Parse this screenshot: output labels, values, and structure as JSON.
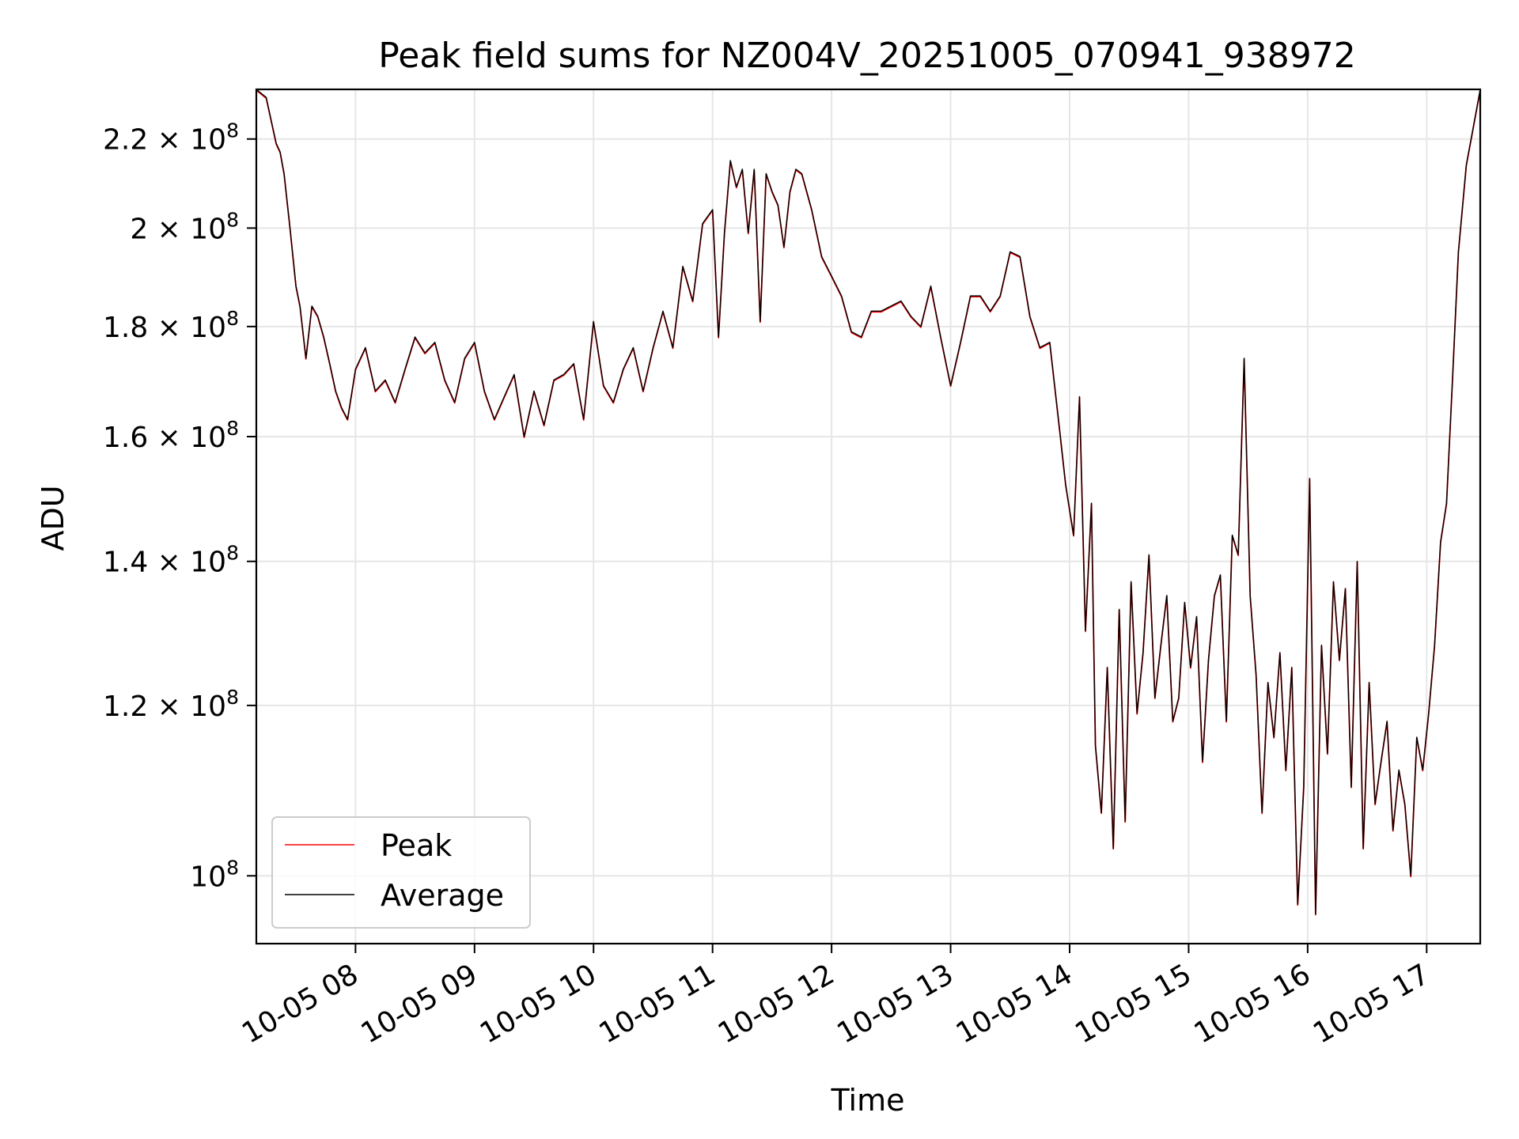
{
  "chart_data": {
    "type": "line",
    "title": "Peak field sums for NZ004V_20251005_070941_938972",
    "xlabel": "Time",
    "ylabel": "ADU",
    "yscale": "log",
    "grid": true,
    "legend_position": "lower-left",
    "xlim": [
      "2025-10-05 07:10",
      "2025-10-05 17:27"
    ],
    "ylim": [
      93000000,
      232000000
    ],
    "xticks": [
      {
        "label": "10-05 08",
        "value": "2025-10-05 08:00"
      },
      {
        "label": "10-05 09",
        "value": "2025-10-05 09:00"
      },
      {
        "label": "10-05 10",
        "value": "2025-10-05 10:00"
      },
      {
        "label": "10-05 11",
        "value": "2025-10-05 11:00"
      },
      {
        "label": "10-05 12",
        "value": "2025-10-05 12:00"
      },
      {
        "label": "10-05 13",
        "value": "2025-10-05 13:00"
      },
      {
        "label": "10-05 14",
        "value": "2025-10-05 14:00"
      },
      {
        "label": "10-05 15",
        "value": "2025-10-05 15:00"
      },
      {
        "label": "10-05 16",
        "value": "2025-10-05 16:00"
      },
      {
        "label": "10-05 17",
        "value": "2025-10-05 17:00"
      }
    ],
    "yticks": [
      {
        "mant": "10",
        "exp": "8",
        "value": 100000000
      },
      {
        "mant": "1.2 × 10",
        "exp": "8",
        "value": 120000000
      },
      {
        "mant": "1.4 × 10",
        "exp": "8",
        "value": 140000000
      },
      {
        "mant": "1.6 × 10",
        "exp": "8",
        "value": 160000000
      },
      {
        "mant": "1.8 × 10",
        "exp": "8",
        "value": 180000000
      },
      {
        "mant": "2 × 10",
        "exp": "8",
        "value": 200000000
      },
      {
        "mant": "2.2 × 10",
        "exp": "8",
        "value": 220000000
      }
    ],
    "series": [
      {
        "name": "Peak",
        "color": "#ff0000",
        "x": [
          "2025-10-05 07:10",
          "2025-10-05 07:15",
          "2025-10-05 07:20",
          "2025-10-05 07:22",
          "2025-10-05 07:24",
          "2025-10-05 07:27",
          "2025-10-05 07:30",
          "2025-10-05 07:32",
          "2025-10-05 07:35",
          "2025-10-05 07:38",
          "2025-10-05 07:41",
          "2025-10-05 07:44",
          "2025-10-05 07:47",
          "2025-10-05 07:50",
          "2025-10-05 07:53",
          "2025-10-05 07:56",
          "2025-10-05 08:00",
          "2025-10-05 08:05",
          "2025-10-05 08:10",
          "2025-10-05 08:15",
          "2025-10-05 08:20",
          "2025-10-05 08:25",
          "2025-10-05 08:30",
          "2025-10-05 08:35",
          "2025-10-05 08:40",
          "2025-10-05 08:45",
          "2025-10-05 08:50",
          "2025-10-05 08:55",
          "2025-10-05 09:00",
          "2025-10-05 09:05",
          "2025-10-05 09:10",
          "2025-10-05 09:15",
          "2025-10-05 09:20",
          "2025-10-05 09:25",
          "2025-10-05 09:30",
          "2025-10-05 09:35",
          "2025-10-05 09:40",
          "2025-10-05 09:45",
          "2025-10-05 09:50",
          "2025-10-05 09:55",
          "2025-10-05 10:00",
          "2025-10-05 10:05",
          "2025-10-05 10:10",
          "2025-10-05 10:15",
          "2025-10-05 10:20",
          "2025-10-05 10:25",
          "2025-10-05 10:30",
          "2025-10-05 10:35",
          "2025-10-05 10:40",
          "2025-10-05 10:45",
          "2025-10-05 10:50",
          "2025-10-05 10:55",
          "2025-10-05 11:00",
          "2025-10-05 11:03",
          "2025-10-05 11:06",
          "2025-10-05 11:09",
          "2025-10-05 11:12",
          "2025-10-05 11:15",
          "2025-10-05 11:18",
          "2025-10-05 11:21",
          "2025-10-05 11:24",
          "2025-10-05 11:27",
          "2025-10-05 11:30",
          "2025-10-05 11:33",
          "2025-10-05 11:36",
          "2025-10-05 11:39",
          "2025-10-05 11:42",
          "2025-10-05 11:45",
          "2025-10-05 11:50",
          "2025-10-05 11:55",
          "2025-10-05 12:00",
          "2025-10-05 12:05",
          "2025-10-05 12:10",
          "2025-10-05 12:15",
          "2025-10-05 12:20",
          "2025-10-05 12:25",
          "2025-10-05 12:30",
          "2025-10-05 12:35",
          "2025-10-05 12:40",
          "2025-10-05 12:45",
          "2025-10-05 12:50",
          "2025-10-05 12:55",
          "2025-10-05 13:00",
          "2025-10-05 13:05",
          "2025-10-05 13:10",
          "2025-10-05 13:15",
          "2025-10-05 13:20",
          "2025-10-05 13:25",
          "2025-10-05 13:30",
          "2025-10-05 13:35",
          "2025-10-05 13:40",
          "2025-10-05 13:45",
          "2025-10-05 13:50",
          "2025-10-05 13:55",
          "2025-10-05 13:58",
          "2025-10-05 14:02",
          "2025-10-05 14:05",
          "2025-10-05 14:08",
          "2025-10-05 14:11",
          "2025-10-05 14:13",
          "2025-10-05 14:16",
          "2025-10-05 14:19",
          "2025-10-05 14:22",
          "2025-10-05 14:25",
          "2025-10-05 14:28",
          "2025-10-05 14:31",
          "2025-10-05 14:34",
          "2025-10-05 14:37",
          "2025-10-05 14:40",
          "2025-10-05 14:43",
          "2025-10-05 14:46",
          "2025-10-05 14:49",
          "2025-10-05 14:52",
          "2025-10-05 14:55",
          "2025-10-05 14:58",
          "2025-10-05 15:01",
          "2025-10-05 15:04",
          "2025-10-05 15:07",
          "2025-10-05 15:10",
          "2025-10-05 15:13",
          "2025-10-05 15:16",
          "2025-10-05 15:19",
          "2025-10-05 15:22",
          "2025-10-05 15:25",
          "2025-10-05 15:28",
          "2025-10-05 15:31",
          "2025-10-05 15:34",
          "2025-10-05 15:37",
          "2025-10-05 15:40",
          "2025-10-05 15:43",
          "2025-10-05 15:46",
          "2025-10-05 15:49",
          "2025-10-05 15:52",
          "2025-10-05 15:55",
          "2025-10-05 15:58",
          "2025-10-05 16:01",
          "2025-10-05 16:04",
          "2025-10-05 16:07",
          "2025-10-05 16:10",
          "2025-10-05 16:13",
          "2025-10-05 16:16",
          "2025-10-05 16:19",
          "2025-10-05 16:22",
          "2025-10-05 16:25",
          "2025-10-05 16:28",
          "2025-10-05 16:31",
          "2025-10-05 16:34",
          "2025-10-05 16:37",
          "2025-10-05 16:40",
          "2025-10-05 16:43",
          "2025-10-05 16:46",
          "2025-10-05 16:49",
          "2025-10-05 16:52",
          "2025-10-05 16:55",
          "2025-10-05 16:58",
          "2025-10-05 17:01",
          "2025-10-05 17:04",
          "2025-10-05 17:07",
          "2025-10-05 17:10",
          "2025-10-05 17:13",
          "2025-10-05 17:16",
          "2025-10-05 17:20",
          "2025-10-05 17:27"
        ],
        "y": [
          232000000,
          230000000,
          219000000,
          217000000,
          212000000,
          200000000,
          188000000,
          184000000,
          174000000,
          184000000,
          182000000,
          178000000,
          173000000,
          168000000,
          165000000,
          163000000,
          172000000,
          176000000,
          168000000,
          170000000,
          166000000,
          172000000,
          178000000,
          175000000,
          177000000,
          170000000,
          166000000,
          174000000,
          177000000,
          168000000,
          163000000,
          167000000,
          171000000,
          160000000,
          168000000,
          162000000,
          170000000,
          171000000,
          173000000,
          163000000,
          181000000,
          169000000,
          166000000,
          172000000,
          176000000,
          168000000,
          176000000,
          183000000,
          176000000,
          192000000,
          185000000,
          201000000,
          204000000,
          178000000,
          199000000,
          215000000,
          209000000,
          213000000,
          199000000,
          213000000,
          181000000,
          212000000,
          208000000,
          205000000,
          196000000,
          208000000,
          213000000,
          212000000,
          204000000,
          194000000,
          190000000,
          186000000,
          179000000,
          178000000,
          183000000,
          183000000,
          184000000,
          185000000,
          182000000,
          180000000,
          188000000,
          178000000,
          169000000,
          177000000,
          186000000,
          186000000,
          183000000,
          186000000,
          195000000,
          194000000,
          182000000,
          176000000,
          177000000,
          161000000,
          152000000,
          144000000,
          167000000,
          130000000,
          149000000,
          115000000,
          107000000,
          125000000,
          103000000,
          133000000,
          106000000,
          137000000,
          119000000,
          127000000,
          141000000,
          121000000,
          128000000,
          135000000,
          118000000,
          121000000,
          134000000,
          125000000,
          132000000,
          113000000,
          126000000,
          135000000,
          138000000,
          118000000,
          144000000,
          141000000,
          174000000,
          135000000,
          124000000,
          107000000,
          123000000,
          116000000,
          127000000,
          112000000,
          125000000,
          97000000,
          110000000,
          153000000,
          96000000,
          128000000,
          114000000,
          137000000,
          126000000,
          136000000,
          110000000,
          140000000,
          103000000,
          123000000,
          108000000,
          113000000,
          118000000,
          105000000,
          112000000,
          108000000,
          100000000,
          116000000,
          112000000,
          119000000,
          128000000,
          143000000,
          149000000,
          170000000,
          195000000,
          214000000,
          232000000
        ]
      },
      {
        "name": "Average",
        "color": "#000000",
        "x": [
          "2025-10-05 07:10",
          "2025-10-05 07:15",
          "2025-10-05 07:20",
          "2025-10-05 07:22",
          "2025-10-05 07:24",
          "2025-10-05 07:27",
          "2025-10-05 07:30",
          "2025-10-05 07:32",
          "2025-10-05 07:35",
          "2025-10-05 07:38",
          "2025-10-05 07:41",
          "2025-10-05 07:44",
          "2025-10-05 07:47",
          "2025-10-05 07:50",
          "2025-10-05 07:53",
          "2025-10-05 07:56",
          "2025-10-05 08:00",
          "2025-10-05 08:05",
          "2025-10-05 08:10",
          "2025-10-05 08:15",
          "2025-10-05 08:20",
          "2025-10-05 08:25",
          "2025-10-05 08:30",
          "2025-10-05 08:35",
          "2025-10-05 08:40",
          "2025-10-05 08:45",
          "2025-10-05 08:50",
          "2025-10-05 08:55",
          "2025-10-05 09:00",
          "2025-10-05 09:05",
          "2025-10-05 09:10",
          "2025-10-05 09:15",
          "2025-10-05 09:20",
          "2025-10-05 09:25",
          "2025-10-05 09:30",
          "2025-10-05 09:35",
          "2025-10-05 09:40",
          "2025-10-05 09:45",
          "2025-10-05 09:50",
          "2025-10-05 09:55",
          "2025-10-05 10:00",
          "2025-10-05 10:05",
          "2025-10-05 10:10",
          "2025-10-05 10:15",
          "2025-10-05 10:20",
          "2025-10-05 10:25",
          "2025-10-05 10:30",
          "2025-10-05 10:35",
          "2025-10-05 10:40",
          "2025-10-05 10:45",
          "2025-10-05 10:50",
          "2025-10-05 10:55",
          "2025-10-05 11:00",
          "2025-10-05 11:03",
          "2025-10-05 11:06",
          "2025-10-05 11:09",
          "2025-10-05 11:12",
          "2025-10-05 11:15",
          "2025-10-05 11:18",
          "2025-10-05 11:21",
          "2025-10-05 11:24",
          "2025-10-05 11:27",
          "2025-10-05 11:30",
          "2025-10-05 11:33",
          "2025-10-05 11:36",
          "2025-10-05 11:39",
          "2025-10-05 11:42",
          "2025-10-05 11:45",
          "2025-10-05 11:50",
          "2025-10-05 11:55",
          "2025-10-05 12:00",
          "2025-10-05 12:05",
          "2025-10-05 12:10",
          "2025-10-05 12:15",
          "2025-10-05 12:20",
          "2025-10-05 12:25",
          "2025-10-05 12:30",
          "2025-10-05 12:35",
          "2025-10-05 12:40",
          "2025-10-05 12:45",
          "2025-10-05 12:50",
          "2025-10-05 12:55",
          "2025-10-05 13:00",
          "2025-10-05 13:05",
          "2025-10-05 13:10",
          "2025-10-05 13:15",
          "2025-10-05 13:20",
          "2025-10-05 13:25",
          "2025-10-05 13:30",
          "2025-10-05 13:35",
          "2025-10-05 13:40",
          "2025-10-05 13:45",
          "2025-10-05 13:50",
          "2025-10-05 13:55",
          "2025-10-05 13:58",
          "2025-10-05 14:02",
          "2025-10-05 14:05",
          "2025-10-05 14:08",
          "2025-10-05 14:11",
          "2025-10-05 14:13",
          "2025-10-05 14:16",
          "2025-10-05 14:19",
          "2025-10-05 14:22",
          "2025-10-05 14:25",
          "2025-10-05 14:28",
          "2025-10-05 14:31",
          "2025-10-05 14:34",
          "2025-10-05 14:37",
          "2025-10-05 14:40",
          "2025-10-05 14:43",
          "2025-10-05 14:46",
          "2025-10-05 14:49",
          "2025-10-05 14:52",
          "2025-10-05 14:55",
          "2025-10-05 14:58",
          "2025-10-05 15:01",
          "2025-10-05 15:04",
          "2025-10-05 15:07",
          "2025-10-05 15:10",
          "2025-10-05 15:13",
          "2025-10-05 15:16",
          "2025-10-05 15:19",
          "2025-10-05 15:22",
          "2025-10-05 15:25",
          "2025-10-05 15:28",
          "2025-10-05 15:31",
          "2025-10-05 15:34",
          "2025-10-05 15:37",
          "2025-10-05 15:40",
          "2025-10-05 15:43",
          "2025-10-05 15:46",
          "2025-10-05 15:49",
          "2025-10-05 15:52",
          "2025-10-05 15:55",
          "2025-10-05 15:58",
          "2025-10-05 16:01",
          "2025-10-05 16:04",
          "2025-10-05 16:07",
          "2025-10-05 16:10",
          "2025-10-05 16:13",
          "2025-10-05 16:16",
          "2025-10-05 16:19",
          "2025-10-05 16:22",
          "2025-10-05 16:25",
          "2025-10-05 16:28",
          "2025-10-05 16:31",
          "2025-10-05 16:34",
          "2025-10-05 16:37",
          "2025-10-05 16:40",
          "2025-10-05 16:43",
          "2025-10-05 16:46",
          "2025-10-05 16:49",
          "2025-10-05 16:52",
          "2025-10-05 16:55",
          "2025-10-05 16:58",
          "2025-10-05 17:01",
          "2025-10-05 17:04",
          "2025-10-05 17:07",
          "2025-10-05 17:10",
          "2025-10-05 17:13",
          "2025-10-05 17:16",
          "2025-10-05 17:20",
          "2025-10-05 17:27"
        ],
        "y": [
          232000000,
          230000000,
          219000000,
          217000000,
          212000000,
          200000000,
          188000000,
          184000000,
          174000000,
          184000000,
          182000000,
          178000000,
          173000000,
          168000000,
          165000000,
          163000000,
          172000000,
          176000000,
          168000000,
          170000000,
          166000000,
          172000000,
          178000000,
          175000000,
          177000000,
          170000000,
          166000000,
          174000000,
          177000000,
          168000000,
          163000000,
          167000000,
          171000000,
          160000000,
          168000000,
          162000000,
          170000000,
          171000000,
          173000000,
          163000000,
          181000000,
          169000000,
          166000000,
          172000000,
          176000000,
          168000000,
          176000000,
          183000000,
          176000000,
          192000000,
          185000000,
          201000000,
          204000000,
          178000000,
          199000000,
          215000000,
          209000000,
          213000000,
          199000000,
          213000000,
          181000000,
          212000000,
          208000000,
          205000000,
          196000000,
          208000000,
          213000000,
          212000000,
          204000000,
          194000000,
          190000000,
          186000000,
          179000000,
          178000000,
          183000000,
          183000000,
          184000000,
          185000000,
          182000000,
          180000000,
          188000000,
          178000000,
          169000000,
          177000000,
          186000000,
          186000000,
          183000000,
          186000000,
          195000000,
          194000000,
          182000000,
          176000000,
          177000000,
          161000000,
          152000000,
          144000000,
          167000000,
          130000000,
          149000000,
          115000000,
          107000000,
          125000000,
          103000000,
          133000000,
          106000000,
          137000000,
          119000000,
          127000000,
          141000000,
          121000000,
          128000000,
          135000000,
          118000000,
          121000000,
          134000000,
          125000000,
          132000000,
          113000000,
          126000000,
          135000000,
          138000000,
          118000000,
          144000000,
          141000000,
          174000000,
          135000000,
          124000000,
          107000000,
          123000000,
          116000000,
          127000000,
          112000000,
          125000000,
          97000000,
          110000000,
          153000000,
          96000000,
          128000000,
          114000000,
          137000000,
          126000000,
          136000000,
          110000000,
          140000000,
          103000000,
          123000000,
          108000000,
          113000000,
          118000000,
          105000000,
          112000000,
          108000000,
          100000000,
          116000000,
          112000000,
          119000000,
          128000000,
          143000000,
          149000000,
          170000000,
          195000000,
          214000000,
          232000000
        ]
      }
    ]
  }
}
